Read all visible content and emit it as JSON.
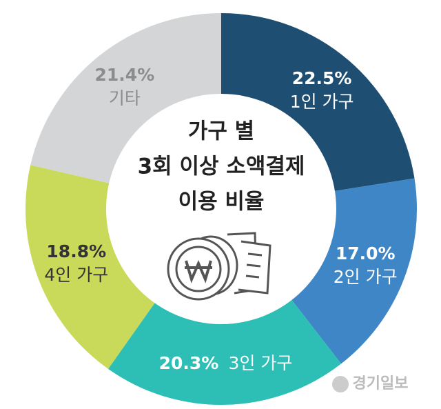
{
  "chart_data": {
    "type": "donut",
    "title": [
      "가구 별",
      "3회 이상 소액결제",
      "이용 비율"
    ],
    "categories": [
      "1인 가구",
      "2인 가구",
      "3인 가구",
      "4인 가구",
      "기타"
    ],
    "values": [
      22.5,
      17.0,
      20.3,
      18.8,
      21.4
    ],
    "value_labels": [
      "22.5%",
      "17.0%",
      "20.3%",
      "18.8%",
      "21.4%"
    ],
    "colors": [
      "#1f4e73",
      "#3f86c6",
      "#2dbfb6",
      "#c9da5b",
      "#d4d5d7"
    ],
    "label_colors": [
      "#ffffff",
      "#ffffff",
      "#ffffff",
      "#333333",
      "#8c8c8c"
    ],
    "source": "경기일보"
  }
}
